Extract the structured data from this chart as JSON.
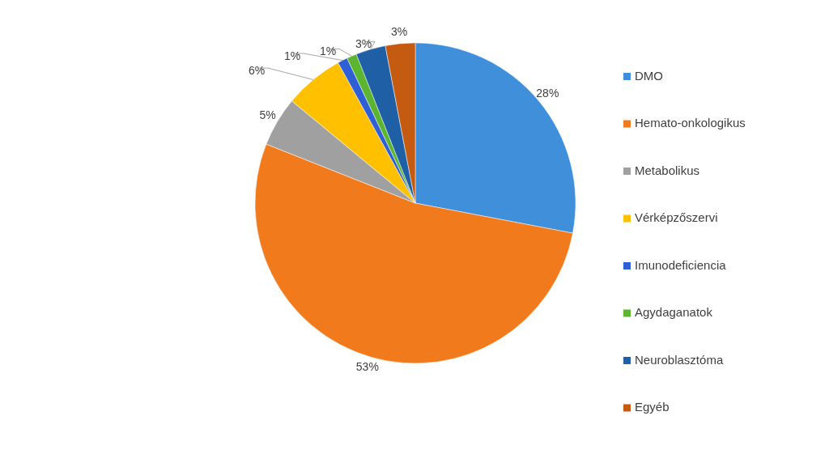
{
  "chart_data": {
    "type": "pie",
    "categories": [
      "DMO",
      "Hemato-onkologikus",
      "Metabolikus",
      "Vérképzőszervi",
      "Imunodeficiencia",
      "Agydaganatok",
      "Neuroblasztóma",
      "Egyéb"
    ],
    "values": [
      28,
      53,
      5,
      6,
      1,
      1,
      3,
      3
    ],
    "value_labels": [
      "28%",
      "53%",
      "5%",
      "6%",
      "1%",
      "1%",
      "3%",
      "3%"
    ],
    "colors": [
      "#3f8fdb",
      "#f07a1c",
      "#a0a0a0",
      "#ffc000",
      "#2e5fd4",
      "#5cb531",
      "#1f5fa6",
      "#c55a11"
    ],
    "legend": "right"
  }
}
